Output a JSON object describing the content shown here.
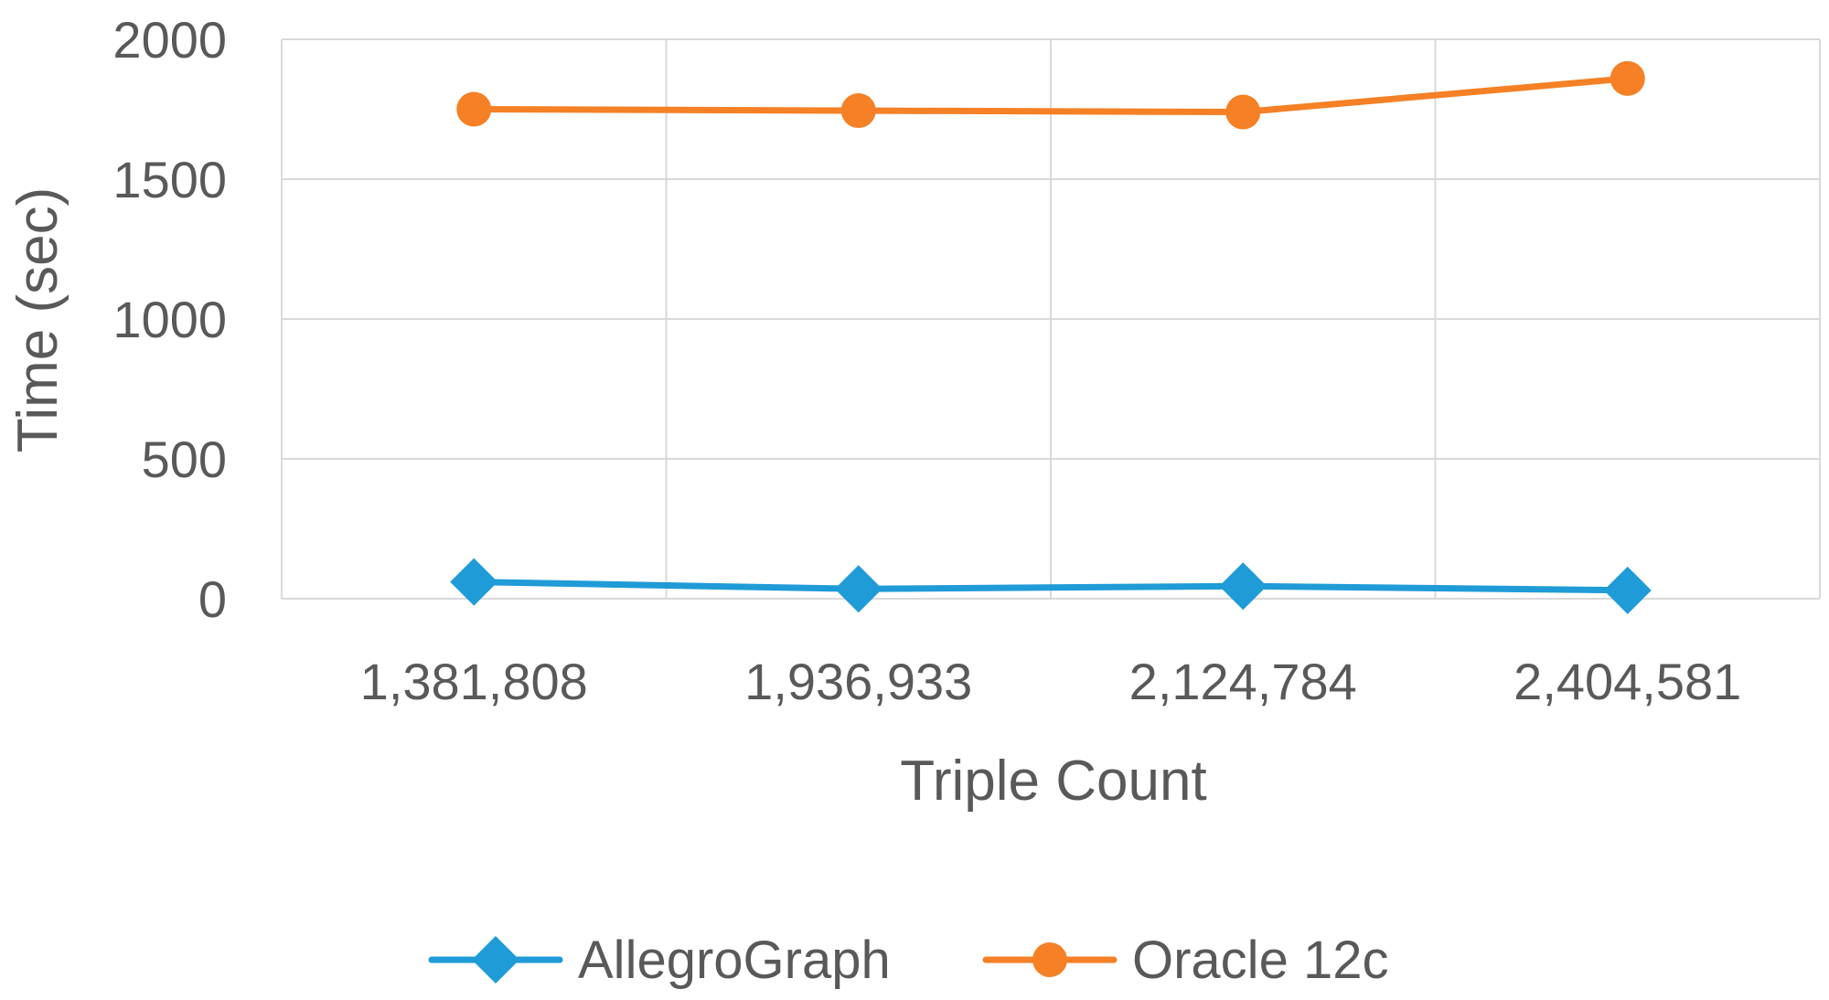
{
  "chart_data": {
    "type": "line",
    "categories": [
      "1,381,808",
      "1,936,933",
      "2,124,784",
      "2,404,581"
    ],
    "series": [
      {
        "name": "AllegroGraph",
        "color": "#1f9bd7",
        "marker": "diamond",
        "values": [
          60,
          35,
          45,
          30
        ]
      },
      {
        "name": "Oracle 12c",
        "color": "#f58025",
        "marker": "circle",
        "values": [
          1750,
          1745,
          1740,
          1860
        ]
      }
    ],
    "xlabel": "Triple Count",
    "ylabel": "Time (sec)",
    "ylim": [
      0,
      2000
    ],
    "yticks": [
      0,
      500,
      1000,
      1500,
      2000
    ],
    "grid": true,
    "legend": "bottom",
    "gridline_color": "#d9d9d9",
    "text_color": "#595959"
  }
}
